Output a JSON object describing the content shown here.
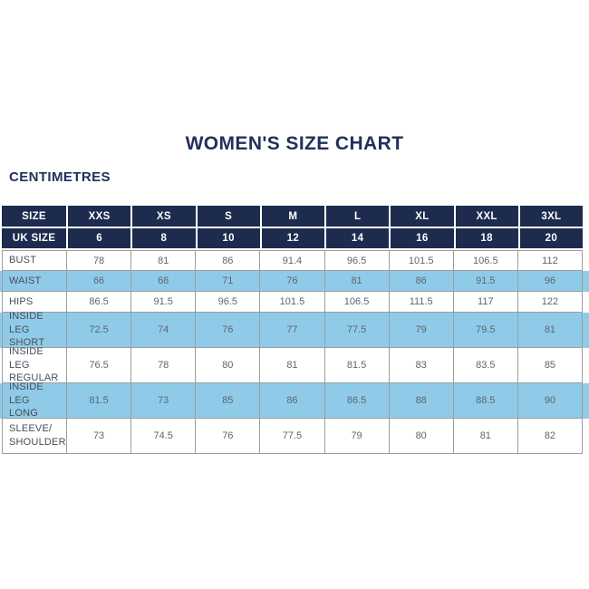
{
  "page": {
    "title": "WOMEN'S SIZE CHART",
    "units_label": "CENTIMETRES"
  },
  "colors": {
    "navy": "#1d2b4e",
    "light_blue": "#8fcbe9",
    "border": "#9d9d9d",
    "title_text": "#21315a",
    "label_text": "#474e57",
    "value_text": "#5d6570",
    "header_text": "#ffffff"
  },
  "table": {
    "size_row": {
      "label": "SIZE",
      "values": [
        "XXS",
        "XS",
        "S",
        "M",
        "L",
        "XL",
        "XXL",
        "3XL"
      ]
    },
    "uk_size_row": {
      "label": "UK SIZE",
      "values": [
        "6",
        "8",
        "10",
        "12",
        "14",
        "16",
        "18",
        "20"
      ]
    },
    "rows": [
      {
        "label": "BUST",
        "values": [
          "78",
          "81",
          "86",
          "91.4",
          "96.5",
          "101.5",
          "106.5",
          "112"
        ],
        "highlight": false
      },
      {
        "label": "WAIST",
        "values": [
          "66",
          "68",
          "71",
          "76",
          "81",
          "86",
          "91.5",
          "96"
        ],
        "highlight": true
      },
      {
        "label": "HIPS",
        "values": [
          "86.5",
          "91.5",
          "96.5",
          "101.5",
          "106.5",
          "111.5",
          "117",
          "122"
        ],
        "highlight": false
      },
      {
        "label": "INSIDE LEG\nSHORT",
        "values": [
          "72.5",
          "74",
          "76",
          "77",
          "77.5",
          "79",
          "79.5",
          "81"
        ],
        "highlight": true
      },
      {
        "label": "INSIDE LEG\nREGULAR",
        "values": [
          "76.5",
          "78",
          "80",
          "81",
          "81.5",
          "83",
          "83.5",
          "85"
        ],
        "highlight": false
      },
      {
        "label": "INSIDE LEG\nLONG",
        "values": [
          "81.5",
          "73",
          "85",
          "86",
          "86.5",
          "88",
          "88.5",
          "90"
        ],
        "highlight": true
      },
      {
        "label": "SLEEVE/\nSHOULDER",
        "values": [
          "73",
          "74.5",
          "76",
          "77.5",
          "79",
          "80",
          "81",
          "82"
        ],
        "highlight": false
      }
    ]
  }
}
